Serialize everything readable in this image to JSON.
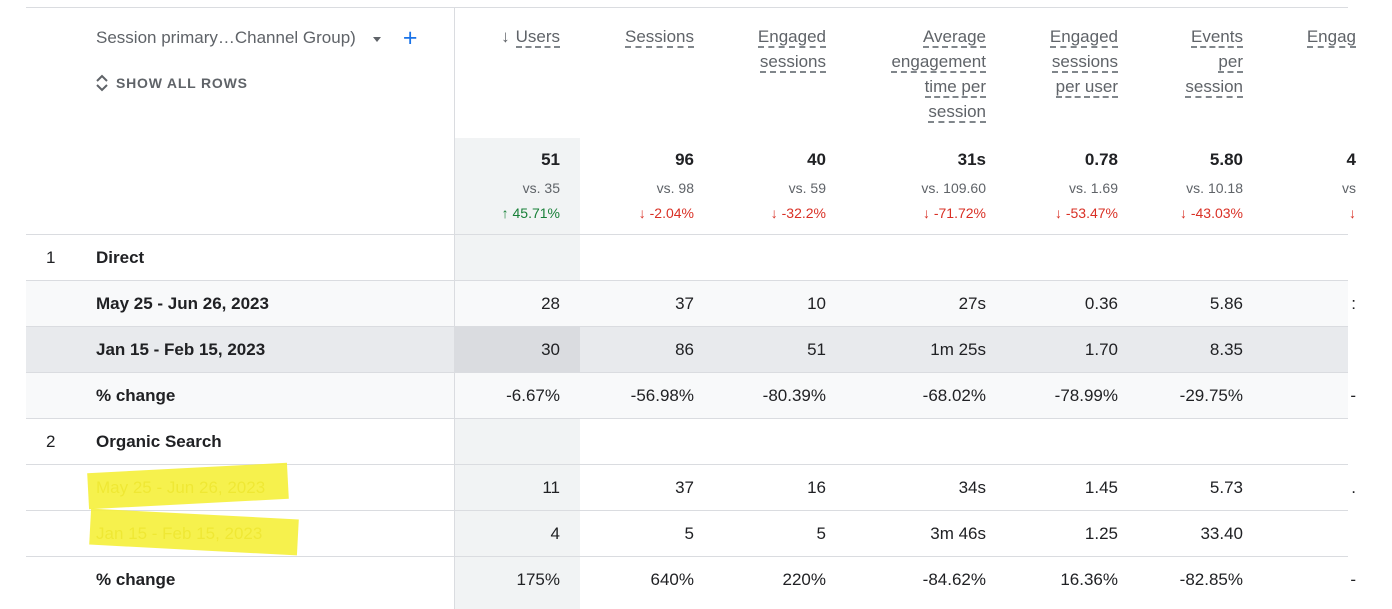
{
  "dimension": {
    "title": "Session primary…Channel Group)",
    "show_all": "SHOW ALL ROWS",
    "plus": "+"
  },
  "columns": [
    {
      "label_lines": [
        "Users"
      ],
      "sorted": true
    },
    {
      "label_lines": [
        "Sessions"
      ]
    },
    {
      "label_lines": [
        "Engaged",
        "sessions"
      ]
    },
    {
      "label_lines": [
        "Average",
        "engagement",
        "time per",
        "session"
      ]
    },
    {
      "label_lines": [
        "Engaged",
        "sessions",
        "per user"
      ]
    },
    {
      "label_lines": [
        "Events",
        "per",
        "session"
      ]
    },
    {
      "label_lines": [
        "Engag"
      ]
    }
  ],
  "totals": [
    {
      "value": "51",
      "cmp": "vs. 35",
      "change": "↑ 45.71%",
      "dir": "up"
    },
    {
      "value": "96",
      "cmp": "vs. 98",
      "change": "↓ -2.04%",
      "dir": "down"
    },
    {
      "value": "40",
      "cmp": "vs. 59",
      "change": "↓ -32.2%",
      "dir": "down"
    },
    {
      "value": "31s",
      "cmp": "vs. 109.60",
      "change": "↓ -71.72%",
      "dir": "down"
    },
    {
      "value": "0.78",
      "cmp": "vs. 1.69",
      "change": "↓ -53.47%",
      "dir": "down"
    },
    {
      "value": "5.80",
      "cmp": "vs. 10.18",
      "change": "↓ -43.03%",
      "dir": "down"
    },
    {
      "value": "4",
      "cmp": "vs",
      "change": "↓",
      "dir": "down"
    }
  ],
  "rows": [
    {
      "num": "1",
      "label": "Direct",
      "cells": []
    },
    {
      "num": "",
      "label": "May 25 - Jun 26, 2023",
      "cells": [
        "28",
        "37",
        "10",
        "27s",
        "0.36",
        "5.86",
        ":"
      ]
    },
    {
      "num": "",
      "label": "Jan 15 - Feb 15, 2023",
      "cells": [
        "30",
        "86",
        "51",
        "1m 25s",
        "1.70",
        "8.35",
        ""
      ]
    },
    {
      "num": "",
      "label": "% change",
      "cells": [
        "-6.67%",
        "-56.98%",
        "-80.39%",
        "-68.02%",
        "-78.99%",
        "-29.75%",
        "-"
      ]
    },
    {
      "num": "2",
      "label": "Organic Search",
      "cells": []
    },
    {
      "num": "",
      "label": "May 25 - Jun 26, 2023",
      "cells": [
        "11",
        "37",
        "16",
        "34s",
        "1.45",
        "5.73",
        "."
      ]
    },
    {
      "num": "",
      "label": "Jan 15 - Feb 15, 2023",
      "cells": [
        "4",
        "5",
        "5",
        "3m 46s",
        "1.25",
        "33.40",
        ""
      ]
    },
    {
      "num": "",
      "label": "% change",
      "cells": [
        "175%",
        "640%",
        "220%",
        "-84.62%",
        "16.36%",
        "-82.85%",
        "-"
      ]
    }
  ],
  "colors": {
    "up": "#188038",
    "down": "#d93025",
    "highlight": "#f5f03a",
    "accent": "#1a73e8"
  }
}
